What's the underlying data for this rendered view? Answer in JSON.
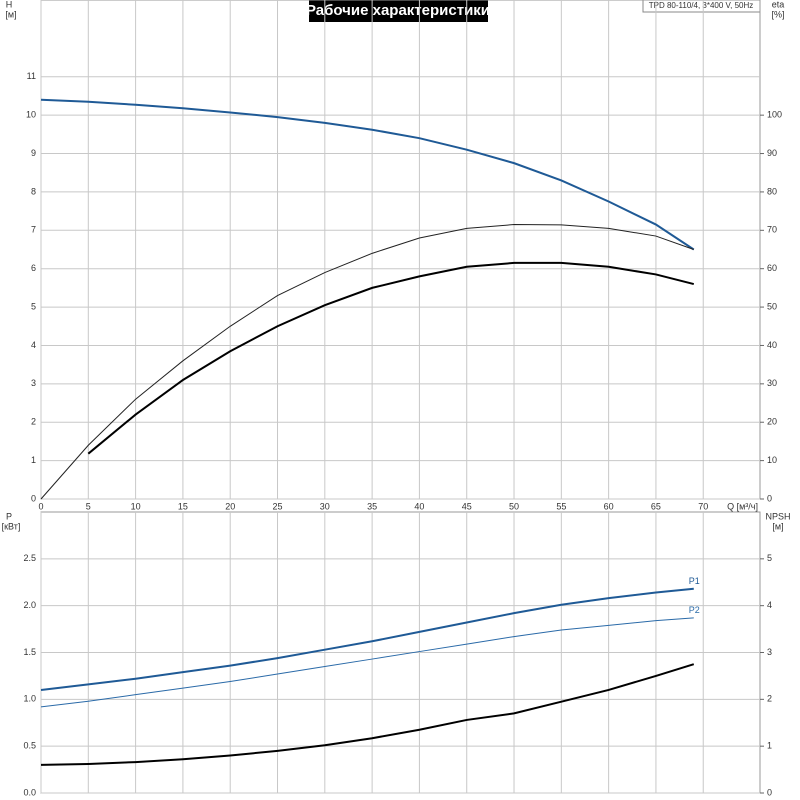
{
  "chart_data": [
    {
      "type": "line",
      "title": "Рабочие характеристики",
      "model": "TPD 80-110/4, 3*400 V, 50Hz",
      "xlabel": "Q [м³/ч]",
      "ylabel": "H",
      "yunit": "[м]",
      "y2label": "eta",
      "y2unit": "[%]",
      "x": [
        0,
        5,
        10,
        15,
        20,
        25,
        30,
        35,
        40,
        45,
        50,
        55,
        60,
        65,
        69
      ],
      "xlim": [
        0,
        76
      ],
      "xticks": [
        0,
        5,
        10,
        15,
        20,
        25,
        30,
        35,
        40,
        45,
        50,
        55,
        60,
        65,
        70
      ],
      "ylim": [
        0,
        13
      ],
      "yticks": [
        0,
        1,
        2,
        3,
        4,
        5,
        6,
        7,
        8,
        9,
        10,
        11
      ],
      "y2lim": [
        0,
        130
      ],
      "y2ticks": [
        0,
        10,
        20,
        30,
        40,
        50,
        60,
        70,
        80,
        90,
        100
      ],
      "grid": true,
      "series": [
        {
          "color": "#1f5a96",
          "width": 2,
          "values": [
            10.4,
            10.35,
            10.27,
            10.18,
            10.07,
            9.95,
            9.8,
            9.62,
            9.4,
            9.1,
            8.75,
            8.3,
            7.75,
            7.15,
            6.5
          ]
        },
        {
          "color": "#222222",
          "width": 1,
          "axis": "y2",
          "values": [
            0,
            14,
            26,
            36,
            45,
            53,
            59,
            64,
            68,
            70.5,
            71.5,
            71.4,
            70.5,
            68.5,
            65
          ]
        },
        {
          "color": "#000000",
          "width": 2,
          "axis": "y2",
          "values": [
            null,
            11.8,
            22,
            31,
            38.5,
            45,
            50.5,
            55,
            58,
            60.5,
            61.5,
            61.5,
            60.5,
            58.5,
            56
          ]
        }
      ]
    },
    {
      "type": "line",
      "ylabel": "P",
      "yunit": "[кВт]",
      "y2label": "NPSH",
      "y2unit": "[м]",
      "x": [
        0,
        5,
        10,
        15,
        20,
        25,
        30,
        35,
        40,
        45,
        50,
        55,
        60,
        65,
        69
      ],
      "xlim": [
        0,
        76
      ],
      "xticks": [
        0,
        5,
        10,
        15,
        20,
        25,
        30,
        35,
        40,
        45,
        50,
        55,
        60,
        65,
        70
      ],
      "ylim": [
        0,
        3
      ],
      "yticks": [
        {
          "value": 0,
          "label": "0.0"
        },
        0.5,
        {
          "value": 1,
          "label": "1.0"
        },
        1.5,
        {
          "value": 2,
          "label": "2.0"
        },
        2.5
      ],
      "y2lim": [
        0,
        6
      ],
      "y2ticks": [
        0,
        1,
        2,
        3,
        4,
        5
      ],
      "grid": true,
      "series": [
        {
          "name": "P1",
          "color": "#1f5a96",
          "width": 2,
          "values": [
            1.1,
            1.16,
            1.22,
            1.29,
            1.36,
            1.44,
            1.53,
            1.62,
            1.72,
            1.82,
            1.92,
            2.01,
            2.08,
            2.14,
            2.18
          ]
        },
        {
          "name": "P2",
          "color": "#2a6aa8",
          "width": 1,
          "values": [
            0.92,
            0.98,
            1.05,
            1.12,
            1.19,
            1.27,
            1.35,
            1.43,
            1.51,
            1.59,
            1.67,
            1.74,
            1.79,
            1.84,
            1.87
          ]
        },
        {
          "color": "#000000",
          "width": 2,
          "axis": "y2",
          "values": [
            0.6,
            0.62,
            0.66,
            0.72,
            0.8,
            0.9,
            1.02,
            1.17,
            1.35,
            1.56,
            1.7,
            1.95,
            2.2,
            2.5,
            2.75
          ]
        }
      ]
    }
  ]
}
